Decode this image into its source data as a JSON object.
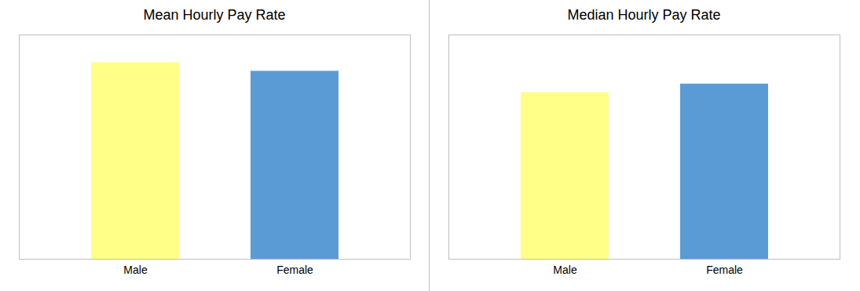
{
  "chart_data": [
    {
      "type": "bar",
      "title": "Mean Hourly Pay Rate",
      "categories": [
        "Male",
        "Female"
      ],
      "values": [
        0.92,
        0.88
      ],
      "colors": [
        "#FFFF88",
        "#5B9BD5"
      ],
      "ylim": [
        0,
        1.05
      ],
      "grid": false,
      "tick_labels": "x"
    },
    {
      "type": "bar",
      "title": "Median Hourly Pay Rate",
      "categories": [
        "Male",
        "Female"
      ],
      "values": [
        0.78,
        0.82
      ],
      "colors": [
        "#FFFF88",
        "#5B9BD5"
      ],
      "ylim": [
        0,
        1.05
      ],
      "grid": false,
      "tick_labels": "x"
    }
  ]
}
